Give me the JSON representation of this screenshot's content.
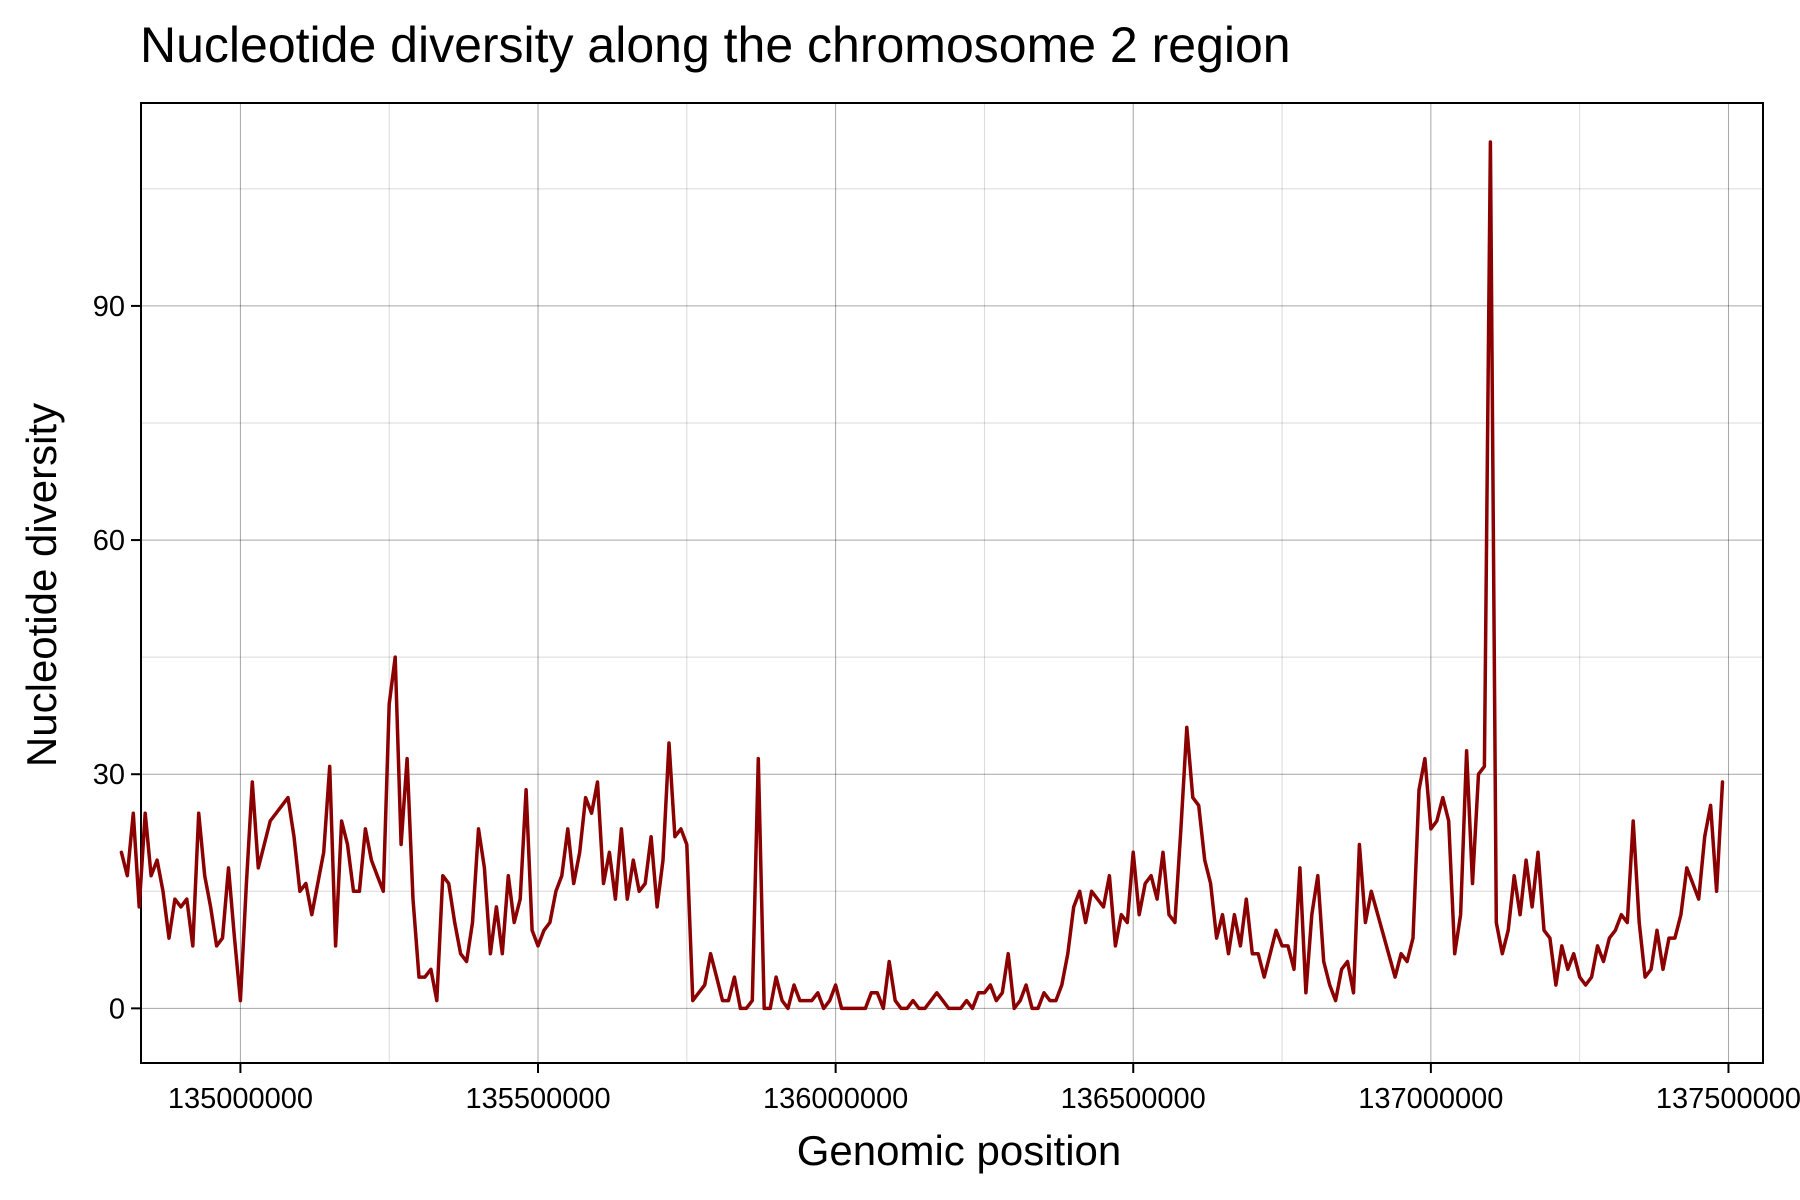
{
  "chart_data": {
    "type": "line",
    "title": "Nucleotide diversity along the chromosome 2 region",
    "xlabel": "Genomic position",
    "ylabel": "Nucleotide diversity",
    "xlim": [
      134833000,
      137558000
    ],
    "ylim": [
      -7,
      116
    ],
    "xticks": [
      135000000,
      135500000,
      136000000,
      136500000,
      137000000,
      137500000
    ],
    "xtick_labels": [
      "135000000",
      "135500000",
      "136000000",
      "136500000",
      "137000000",
      "137500000"
    ],
    "yticks": [
      0,
      30,
      60,
      90
    ],
    "ytick_labels": [
      "0",
      "30",
      "60",
      "90"
    ],
    "grid": true,
    "legend": "none",
    "color": "#8b0000",
    "series": [
      {
        "x": [
          134800000,
          134810000,
          134820000,
          134830000,
          134840000,
          134850000,
          134860000,
          134870000,
          134880000,
          134890000,
          134900000,
          134910000,
          134920000,
          134930000,
          134940000,
          134950000,
          134960000,
          134970000,
          134980000,
          134990000,
          135000000,
          135010000,
          135020000,
          135030000,
          135050000,
          135080000,
          135090000,
          135100000,
          135110000,
          135120000,
          135140000,
          135150000,
          135160000,
          135170000,
          135180000,
          135190000,
          135200000,
          135210000,
          135220000,
          135230000,
          135240000,
          135250000,
          135260000,
          135270000,
          135280000,
          135290000,
          135300000,
          135310000,
          135320000,
          135330000,
          135340000,
          135350000,
          135360000,
          135370000,
          135380000,
          135390000,
          135400000,
          135410000,
          135420000,
          135430000,
          135440000,
          135450000,
          135460000,
          135470000,
          135480000,
          135490000,
          135500000,
          135510000,
          135520000,
          135530000,
          135540000,
          135550000,
          135560000,
          135570000,
          135580000,
          135590000,
          135600000,
          135610000,
          135620000,
          135630000,
          135640000,
          135650000,
          135660000,
          135670000,
          135680000,
          135690000,
          135700000,
          135710000,
          135720000,
          135730000,
          135740000,
          135750000,
          135760000,
          135770000,
          135780000,
          135790000,
          135800000,
          135810000,
          135820000,
          135830000,
          135840000,
          135850000,
          135860000,
          135870000,
          135880000,
          135890000,
          135900000,
          135910000,
          135920000,
          135930000,
          135940000,
          135950000,
          135960000,
          135970000,
          135980000,
          135990000,
          136000000,
          136010000,
          136020000,
          136030000,
          136040000,
          136050000,
          136060000,
          136070000,
          136080000,
          136090000,
          136100000,
          136110000,
          136120000,
          136130000,
          136140000,
          136150000,
          136160000,
          136170000,
          136180000,
          136190000,
          136200000,
          136210000,
          136220000,
          136230000,
          136240000,
          136250000,
          136260000,
          136270000,
          136280000,
          136290000,
          136300000,
          136310000,
          136320000,
          136330000,
          136340000,
          136350000,
          136360000,
          136370000,
          136380000,
          136390000,
          136400000,
          136410000,
          136420000,
          136430000,
          136440000,
          136450000,
          136460000,
          136470000,
          136480000,
          136490000,
          136500000,
          136510000,
          136520000,
          136530000,
          136540000,
          136550000,
          136560000,
          136570000,
          136580000,
          136590000,
          136600000,
          136610000,
          136620000,
          136630000,
          136640000,
          136650000,
          136660000,
          136670000,
          136680000,
          136690000,
          136700000,
          136710000,
          136720000,
          136730000,
          136740000,
          136750000,
          136760000,
          136770000,
          136780000,
          136790000,
          136800000,
          136810000,
          136820000,
          136830000,
          136840000,
          136850000,
          136860000,
          136870000,
          136880000,
          136890000,
          136900000,
          136940000,
          136950000,
          136960000,
          136970000,
          136980000,
          136990000,
          137000000,
          137010000,
          137020000,
          137030000,
          137040000,
          137050000,
          137060000,
          137070000,
          137080000,
          137090000,
          137100000,
          137110000,
          137120000,
          137130000,
          137140000,
          137150000,
          137160000,
          137170000,
          137180000,
          137190000,
          137200000,
          137210000,
          137220000,
          137230000,
          137240000,
          137250000,
          137260000,
          137270000,
          137280000,
          137290000,
          137300000,
          137310000,
          137320000,
          137330000,
          137340000,
          137350000,
          137360000,
          137370000,
          137380000,
          137390000,
          137400000,
          137410000,
          137420000,
          137430000,
          137440000,
          137450000,
          137460000,
          137470000,
          137480000,
          137490000
        ],
        "y": [
          20,
          17,
          25,
          13,
          25,
          17,
          19,
          15,
          9,
          14,
          13,
          14,
          8,
          25,
          17,
          13,
          8,
          9,
          18,
          9,
          1,
          16,
          29,
          18,
          24,
          27,
          22,
          15,
          16,
          12,
          20,
          31,
          8,
          24,
          21,
          15,
          15,
          23,
          19,
          17,
          15,
          39,
          45,
          21,
          32,
          14,
          4,
          4,
          5,
          1,
          17,
          16,
          11,
          7,
          6,
          11,
          23,
          18,
          7,
          13,
          7,
          17,
          11,
          14,
          28,
          10,
          8,
          10,
          11,
          15,
          17,
          23,
          16,
          20,
          27,
          25,
          29,
          16,
          20,
          14,
          23,
          14,
          19,
          15,
          16,
          22,
          13,
          19,
          34,
          22,
          23,
          21,
          1,
          2,
          3,
          7,
          4,
          1,
          1,
          4,
          0,
          0,
          1,
          32,
          0,
          0,
          4,
          1,
          0,
          3,
          1,
          1,
          1,
          2,
          0,
          1,
          3,
          0,
          0,
          0,
          0,
          0,
          2,
          2,
          0,
          6,
          1,
          0,
          0,
          1,
          0,
          0,
          1,
          2,
          1,
          0,
          0,
          0,
          1,
          0,
          2,
          2,
          3,
          1,
          2,
          7,
          0,
          1,
          3,
          0,
          0,
          2,
          1,
          1,
          3,
          7,
          13,
          15,
          11,
          15,
          14,
          13,
          17,
          8,
          12,
          11,
          20,
          12,
          16,
          17,
          14,
          20,
          12,
          11,
          23,
          36,
          27,
          26,
          19,
          16,
          9,
          12,
          7,
          12,
          8,
          14,
          7,
          7,
          4,
          7,
          10,
          8,
          8,
          5,
          18,
          2,
          12,
          17,
          6,
          3,
          1,
          5,
          6,
          2,
          21,
          11,
          15,
          4,
          7,
          6,
          9,
          28,
          32,
          23,
          24,
          27,
          24,
          7,
          12,
          33,
          16,
          30,
          31,
          111,
          11,
          7,
          10,
          17,
          12,
          19,
          13,
          20,
          10,
          9,
          3,
          8,
          5,
          7,
          4,
          3,
          4,
          8,
          6,
          9,
          10,
          12,
          11,
          24,
          11,
          4,
          5,
          10,
          5,
          9,
          9,
          12,
          18,
          16,
          14,
          22,
          26,
          15,
          29
        ]
      }
    ]
  }
}
